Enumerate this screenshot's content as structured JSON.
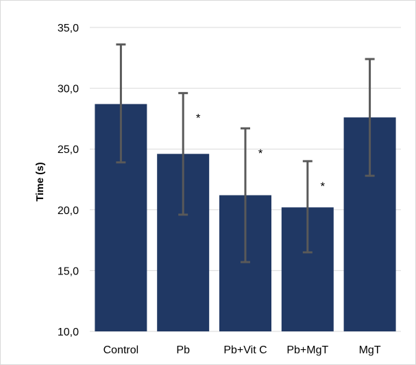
{
  "chart_data": {
    "type": "bar",
    "title": "",
    "xlabel": "",
    "ylabel": "Time (s)",
    "ylim": [
      10,
      35
    ],
    "yticks": [
      "10,0",
      "15,0",
      "20,0",
      "25,0",
      "30,0",
      "35,0"
    ],
    "categories": [
      "Control",
      "Pb",
      "Pb+Vit C",
      "Pb+MgT",
      "MgT"
    ],
    "values": [
      28.7,
      24.6,
      21.2,
      20.2,
      27.6
    ],
    "error_upper": [
      33.6,
      29.6,
      26.7,
      24.0,
      32.4
    ],
    "error_lower": [
      23.9,
      19.6,
      15.7,
      16.5,
      22.8
    ],
    "significance": [
      "",
      "*",
      "*",
      "*",
      ""
    ],
    "grid": true,
    "legend": "none",
    "bar_color": "#203864",
    "error_bar_color": "#595959",
    "gridline_color": "#d9d9d9"
  }
}
